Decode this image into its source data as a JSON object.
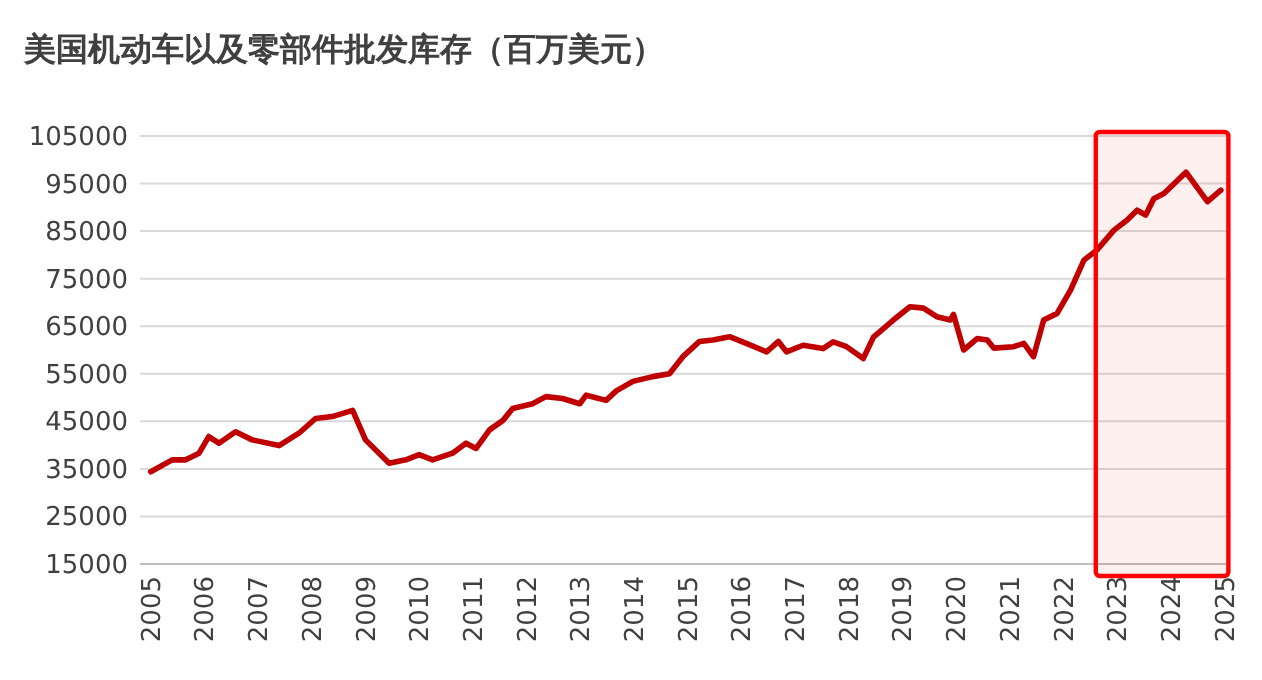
{
  "chart_data": {
    "type": "line",
    "title": "美国机动车以及零部件批发库存（百万美元）",
    "x": [
      2005.0,
      2005.4,
      2005.65,
      2005.9,
      2006.08,
      2006.27,
      2006.58,
      2006.89,
      2007.39,
      2007.76,
      2008.07,
      2008.38,
      2008.76,
      2009.0,
      2009.44,
      2009.75,
      2010.0,
      2010.25,
      2010.62,
      2010.87,
      2011.06,
      2011.31,
      2011.56,
      2011.74,
      2012.11,
      2012.36,
      2012.67,
      2012.99,
      2013.11,
      2013.48,
      2013.67,
      2013.98,
      2014.35,
      2014.66,
      2014.91,
      2015.22,
      2015.47,
      2015.78,
      2016.09,
      2016.47,
      2016.69,
      2016.84,
      2017.15,
      2017.52,
      2017.71,
      2017.96,
      2018.27,
      2018.46,
      2018.83,
      2019.14,
      2019.39,
      2019.64,
      2019.89,
      2019.95,
      2020.14,
      2020.39,
      2020.58,
      2020.7,
      2021.07,
      2021.26,
      2021.44,
      2021.63,
      2021.88,
      2022.13,
      2022.38,
      2022.62,
      2022.94,
      2023.18,
      2023.37,
      2023.53,
      2023.68,
      2023.87,
      2024.28,
      2024.68,
      2024.93
    ],
    "series": [
      {
        "color": "#c00000",
        "values": [
          34400,
          36900,
          36900,
          38300,
          41800,
          40400,
          42800,
          41100,
          39900,
          42500,
          45600,
          46000,
          47300,
          41100,
          36200,
          36900,
          38000,
          36900,
          38300,
          40400,
          39300,
          43200,
          45200,
          47700,
          48700,
          50200,
          49800,
          48700,
          50500,
          49400,
          51400,
          53400,
          54400,
          55000,
          58600,
          61800,
          62100,
          62800,
          61400,
          59600,
          61800,
          59600,
          61000,
          60300,
          61700,
          60700,
          58200,
          62700,
          66300,
          69100,
          68800,
          67000,
          66300,
          67500,
          60000,
          62400,
          62100,
          60400,
          60700,
          61400,
          58600,
          66300,
          67700,
          72600,
          78900,
          81000,
          85200,
          87300,
          89400,
          88400,
          91800,
          92900,
          97400,
          91200,
          93600
        ]
      }
    ],
    "xlim": [
      2004.8,
      2025.1
    ],
    "xticks": [
      {
        "value": 2005,
        "label": "2005"
      },
      {
        "value": 2006,
        "label": "2006"
      },
      {
        "value": 2007,
        "label": "2007"
      },
      {
        "value": 2008,
        "label": "2008"
      },
      {
        "value": 2009,
        "label": "2009"
      },
      {
        "value": 2010,
        "label": "2010"
      },
      {
        "value": 2011,
        "label": "2011"
      },
      {
        "value": 2012,
        "label": "2012"
      },
      {
        "value": 2013,
        "label": "2013"
      },
      {
        "value": 2014,
        "label": "2014"
      },
      {
        "value": 2015,
        "label": "2015"
      },
      {
        "value": 2016,
        "label": "2016"
      },
      {
        "value": 2017,
        "label": "2017"
      },
      {
        "value": 2018,
        "label": "2018"
      },
      {
        "value": 2019,
        "label": "2019"
      },
      {
        "value": 2020,
        "label": "2020"
      },
      {
        "value": 2021,
        "label": "2021"
      },
      {
        "value": 2022,
        "label": "2022"
      },
      {
        "value": 2023,
        "label": "2023"
      },
      {
        "value": 2024,
        "label": "2024"
      },
      {
        "value": 2025,
        "label": "2025"
      }
    ],
    "ylim": [
      15000,
      105000
    ],
    "yticks": [
      15000,
      25000,
      35000,
      45000,
      55000,
      65000,
      75000,
      85000,
      95000,
      105000
    ],
    "grid": "y",
    "marker": "none",
    "line_style": "solid",
    "bands": [
      {
        "axis": "x",
        "from": 2022.6,
        "to": 2025.07,
        "color": "#ff0000"
      }
    ]
  }
}
